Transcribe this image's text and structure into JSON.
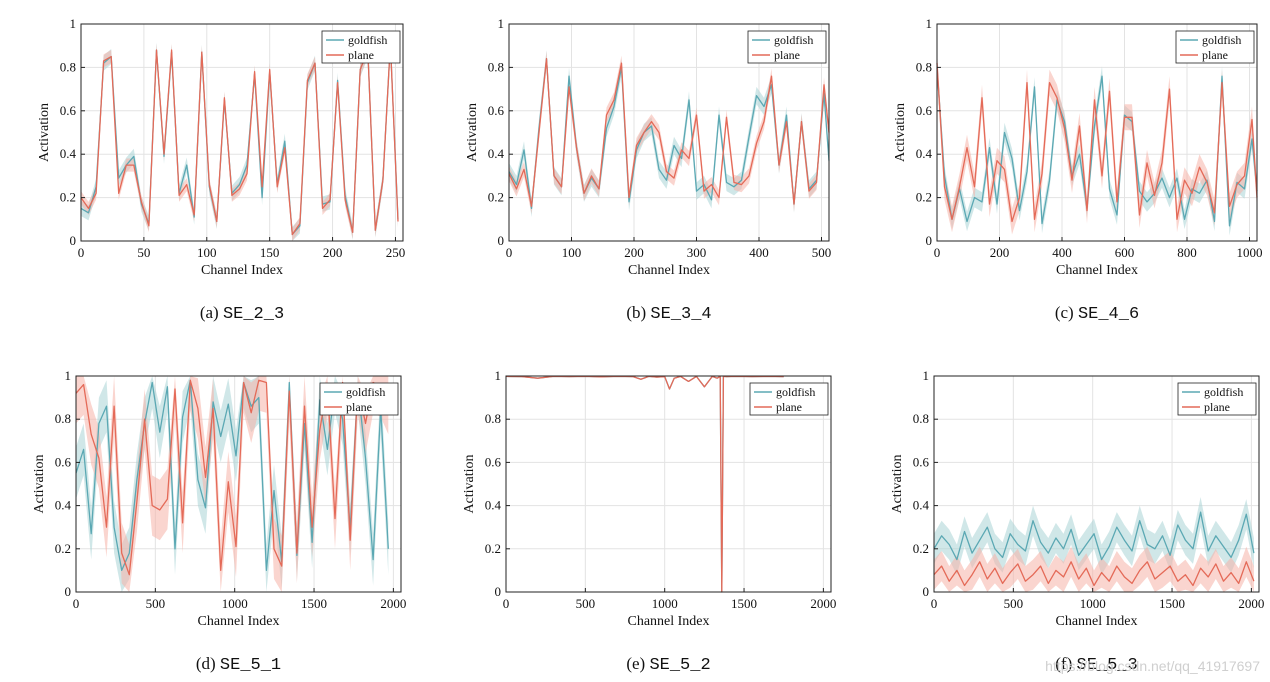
{
  "figure": {
    "series_names": [
      "goldfish",
      "plane"
    ],
    "series_colors": [
      "#5ba8b3",
      "#e46a58"
    ],
    "band_colors": [
      "#a9d4d6",
      "#f6b3a8"
    ],
    "watermark": "https://blog.csdn.net/qq_41917697"
  },
  "chart_data": [
    {
      "type": "line",
      "caption_label": "(a)",
      "caption_name": "SE_2_3",
      "xlabel": "Channel Index",
      "ylabel": "Activation",
      "xlim": [
        0,
        256
      ],
      "ylim": [
        0,
        1
      ],
      "xticks": [
        0,
        50,
        100,
        150,
        200,
        250
      ],
      "yticks": [
        0,
        0.2,
        0.4,
        0.6,
        0.8,
        1
      ],
      "legend": [
        "goldfish",
        "plane"
      ],
      "legend_position": "top-right",
      "x": [
        0,
        6,
        12,
        18,
        24,
        30,
        36,
        42,
        48,
        54,
        60,
        66,
        72,
        78,
        84,
        90,
        96,
        102,
        108,
        114,
        120,
        126,
        132,
        138,
        144,
        150,
        156,
        162,
        168,
        174,
        180,
        186,
        192,
        198,
        204,
        210,
        216,
        222,
        228,
        234,
        240,
        246,
        252
      ],
      "series": [
        {
          "name": "goldfish",
          "values": [
            0.15,
            0.13,
            0.25,
            0.82,
            0.85,
            0.29,
            0.35,
            0.39,
            0.17,
            0.08,
            0.88,
            0.39,
            0.87,
            0.22,
            0.35,
            0.11,
            0.87,
            0.25,
            0.09,
            0.65,
            0.22,
            0.26,
            0.35,
            0.77,
            0.2,
            0.78,
            0.26,
            0.46,
            0.03,
            0.07,
            0.73,
            0.82,
            0.17,
            0.18,
            0.74,
            0.21,
            0.04,
            0.79,
            0.88,
            0.05,
            0.28,
            0.91,
            0.1
          ]
        },
        {
          "name": "plane",
          "values": [
            0.2,
            0.15,
            0.22,
            0.83,
            0.85,
            0.22,
            0.35,
            0.35,
            0.18,
            0.07,
            0.88,
            0.4,
            0.88,
            0.21,
            0.26,
            0.12,
            0.87,
            0.26,
            0.09,
            0.66,
            0.21,
            0.24,
            0.31,
            0.78,
            0.25,
            0.79,
            0.25,
            0.43,
            0.03,
            0.08,
            0.74,
            0.82,
            0.15,
            0.19,
            0.73,
            0.19,
            0.04,
            0.79,
            0.88,
            0.05,
            0.28,
            0.91,
            0.09
          ]
        }
      ],
      "band_halfwidth": [
        0.035,
        0.03
      ]
    },
    {
      "type": "line",
      "caption_label": "(b)",
      "caption_name": "SE_3_4",
      "xlabel": "Channel Index",
      "ylabel": "Activation",
      "xlim": [
        0,
        512
      ],
      "ylim": [
        0,
        1
      ],
      "xticks": [
        0,
        100,
        200,
        300,
        400,
        500
      ],
      "yticks": [
        0,
        0.2,
        0.4,
        0.6,
        0.8,
        1
      ],
      "legend": [
        "goldfish",
        "plane"
      ],
      "legend_position": "top-right",
      "x": [
        0,
        12,
        24,
        36,
        48,
        60,
        72,
        84,
        96,
        108,
        120,
        132,
        144,
        156,
        168,
        180,
        192,
        204,
        216,
        228,
        240,
        252,
        264,
        276,
        288,
        300,
        312,
        324,
        336,
        348,
        360,
        372,
        384,
        396,
        408,
        420,
        432,
        444,
        456,
        468,
        480,
        492,
        504,
        512
      ],
      "series": [
        {
          "name": "goldfish",
          "values": [
            0.32,
            0.26,
            0.42,
            0.15,
            0.52,
            0.84,
            0.3,
            0.25,
            0.76,
            0.43,
            0.22,
            0.29,
            0.24,
            0.52,
            0.62,
            0.8,
            0.18,
            0.42,
            0.5,
            0.53,
            0.33,
            0.28,
            0.44,
            0.38,
            0.65,
            0.23,
            0.26,
            0.19,
            0.58,
            0.27,
            0.25,
            0.28,
            0.48,
            0.67,
            0.62,
            0.72,
            0.35,
            0.58,
            0.17,
            0.55,
            0.24,
            0.28,
            0.68,
            0.37
          ]
        },
        {
          "name": "plane",
          "values": [
            0.31,
            0.24,
            0.33,
            0.16,
            0.5,
            0.84,
            0.3,
            0.25,
            0.71,
            0.43,
            0.22,
            0.3,
            0.24,
            0.58,
            0.65,
            0.82,
            0.2,
            0.44,
            0.5,
            0.55,
            0.5,
            0.32,
            0.29,
            0.42,
            0.38,
            0.58,
            0.23,
            0.26,
            0.2,
            0.57,
            0.27,
            0.26,
            0.3,
            0.45,
            0.55,
            0.76,
            0.35,
            0.55,
            0.17,
            0.55,
            0.23,
            0.27,
            0.72,
            0.5
          ]
        }
      ],
      "band_halfwidth": [
        0.04,
        0.035
      ]
    },
    {
      "type": "line",
      "caption_label": "(c)",
      "caption_name": "SE_4_6",
      "xlabel": "Channel Index",
      "ylabel": "Activation",
      "xlim": [
        0,
        1024
      ],
      "ylim": [
        0,
        1
      ],
      "xticks": [
        0,
        200,
        400,
        600,
        800,
        1000
      ],
      "yticks": [
        0,
        0.2,
        0.4,
        0.6,
        0.8,
        1
      ],
      "legend": [
        "goldfish",
        "plane"
      ],
      "legend_position": "top-right",
      "x": [
        0,
        24,
        48,
        72,
        96,
        120,
        144,
        168,
        192,
        216,
        240,
        264,
        288,
        312,
        336,
        360,
        384,
        408,
        432,
        456,
        480,
        504,
        528,
        552,
        576,
        600,
        624,
        648,
        672,
        696,
        720,
        744,
        768,
        792,
        816,
        840,
        864,
        888,
        912,
        936,
        960,
        984,
        1008,
        1024
      ],
      "series": [
        {
          "name": "goldfish",
          "values": [
            0.8,
            0.3,
            0.1,
            0.24,
            0.09,
            0.2,
            0.18,
            0.43,
            0.17,
            0.5,
            0.38,
            0.14,
            0.32,
            0.71,
            0.08,
            0.28,
            0.65,
            0.55,
            0.3,
            0.4,
            0.15,
            0.53,
            0.76,
            0.24,
            0.12,
            0.58,
            0.55,
            0.23,
            0.18,
            0.22,
            0.29,
            0.2,
            0.29,
            0.1,
            0.24,
            0.22,
            0.28,
            0.09,
            0.76,
            0.07,
            0.27,
            0.24,
            0.47,
            0.23
          ]
        },
        {
          "name": "plane",
          "values": [
            0.82,
            0.25,
            0.1,
            0.25,
            0.43,
            0.25,
            0.66,
            0.17,
            0.37,
            0.33,
            0.09,
            0.2,
            0.73,
            0.1,
            0.31,
            0.73,
            0.66,
            0.52,
            0.28,
            0.53,
            0.14,
            0.65,
            0.3,
            0.69,
            0.18,
            0.57,
            0.57,
            0.12,
            0.36,
            0.21,
            0.36,
            0.7,
            0.1,
            0.28,
            0.22,
            0.34,
            0.27,
            0.13,
            0.73,
            0.16,
            0.26,
            0.3,
            0.56,
            0.2
          ]
        }
      ],
      "band_halfwidth": [
        0.045,
        0.06
      ]
    },
    {
      "type": "line",
      "caption_label": "(d)",
      "caption_name": "SE_5_1",
      "xlabel": "Channel Index",
      "ylabel": "Activation",
      "xlim": [
        0,
        2048
      ],
      "ylim": [
        0,
        1
      ],
      "xticks": [
        0,
        500,
        1000,
        1500,
        2000
      ],
      "yticks": [
        0,
        0.2,
        0.4,
        0.6,
        0.8,
        1
      ],
      "legend": [
        "goldfish",
        "plane"
      ],
      "legend_position": "top-right",
      "x": [
        0,
        48,
        96,
        144,
        192,
        240,
        288,
        336,
        384,
        432,
        480,
        528,
        576,
        624,
        672,
        720,
        768,
        816,
        864,
        912,
        960,
        1008,
        1056,
        1104,
        1152,
        1200,
        1248,
        1296,
        1344,
        1392,
        1440,
        1488,
        1536,
        1584,
        1632,
        1680,
        1728,
        1776,
        1824,
        1872,
        1920,
        1968
      ],
      "series": [
        {
          "name": "goldfish",
          "values": [
            0.55,
            0.66,
            0.27,
            0.78,
            0.86,
            0.3,
            0.1,
            0.18,
            0.52,
            0.78,
            0.97,
            0.74,
            0.95,
            0.2,
            0.81,
            0.98,
            0.52,
            0.39,
            0.88,
            0.72,
            0.87,
            0.63,
            0.97,
            0.86,
            0.9,
            0.1,
            0.47,
            0.14,
            0.97,
            0.17,
            0.78,
            0.23,
            0.89,
            0.66,
            0.95,
            0.8,
            0.29,
            0.96,
            0.62,
            0.15,
            0.85,
            0.2
          ]
        },
        {
          "name": "plane",
          "values": [
            0.92,
            0.96,
            0.73,
            0.62,
            0.3,
            0.86,
            0.18,
            0.08,
            0.42,
            0.8,
            0.4,
            0.38,
            0.43,
            0.94,
            0.32,
            0.98,
            0.85,
            0.53,
            0.85,
            0.1,
            0.51,
            0.21,
            0.97,
            0.83,
            0.98,
            0.97,
            0.2,
            0.12,
            0.93,
            0.18,
            0.86,
            0.3,
            0.75,
            0.96,
            0.34,
            0.97,
            0.24,
            0.96,
            0.78,
            0.97,
            0.95,
            0.87
          ]
        }
      ],
      "band_halfwidth": [
        0.12,
        0.14
      ]
    },
    {
      "type": "line",
      "caption_label": "(e)",
      "caption_name": "SE_5_2",
      "xlabel": "Channel Index",
      "ylabel": "Activation",
      "xlim": [
        0,
        2048
      ],
      "ylim": [
        0,
        1
      ],
      "xticks": [
        0,
        500,
        1000,
        1500,
        2000
      ],
      "yticks": [
        0,
        0.2,
        0.4,
        0.6,
        0.8,
        1
      ],
      "legend": [
        "goldfish",
        "plane"
      ],
      "legend_position": "top-right",
      "x": [
        0,
        100,
        200,
        300,
        400,
        500,
        600,
        700,
        800,
        850,
        900,
        950,
        1000,
        1030,
        1060,
        1100,
        1150,
        1200,
        1250,
        1300,
        1330,
        1350,
        1360,
        1370,
        1390,
        1450,
        1550,
        1650,
        1750
      ],
      "series": [
        {
          "name": "goldfish",
          "values": [
            0.998,
            0.997,
            0.99,
            0.998,
            0.997,
            0.998,
            0.996,
            0.998,
            0.997,
            0.985,
            0.998,
            0.995,
            0.997,
            0.94,
            0.99,
            0.998,
            0.975,
            0.998,
            0.95,
            0.998,
            0.99,
            0.998,
            0.0,
            0.998,
            0.997,
            0.998,
            0.997,
            0.998,
            0.997
          ]
        },
        {
          "name": "plane",
          "values": [
            0.998,
            0.997,
            0.99,
            0.998,
            0.997,
            0.998,
            0.996,
            0.998,
            0.997,
            0.985,
            0.998,
            0.995,
            0.997,
            0.94,
            0.99,
            0.998,
            0.975,
            0.998,
            0.95,
            0.998,
            0.99,
            0.998,
            0.0,
            0.998,
            0.997,
            0.998,
            0.997,
            0.998,
            0.997
          ]
        }
      ],
      "band_halfwidth": [
        0.0,
        0.0
      ]
    },
    {
      "type": "line",
      "caption_label": "(f)",
      "caption_name": "SE_5_3",
      "xlabel": "Channel Index",
      "ylabel": "Activation",
      "xlim": [
        0,
        2048
      ],
      "ylim": [
        0,
        1
      ],
      "xticks": [
        0,
        500,
        1000,
        1500,
        2000
      ],
      "yticks": [
        0,
        0.2,
        0.4,
        0.6,
        0.8,
        1
      ],
      "legend": [
        "goldfish",
        "plane"
      ],
      "legend_position": "top-right",
      "x": [
        0,
        48,
        96,
        144,
        192,
        240,
        288,
        336,
        384,
        432,
        480,
        528,
        576,
        624,
        672,
        720,
        768,
        816,
        864,
        912,
        960,
        1008,
        1056,
        1104,
        1152,
        1200,
        1248,
        1296,
        1344,
        1392,
        1440,
        1488,
        1536,
        1584,
        1632,
        1680,
        1728,
        1776,
        1824,
        1872,
        1920,
        1968,
        2016
      ],
      "series": [
        {
          "name": "goldfish",
          "values": [
            0.2,
            0.26,
            0.22,
            0.15,
            0.28,
            0.18,
            0.24,
            0.3,
            0.2,
            0.16,
            0.27,
            0.22,
            0.19,
            0.33,
            0.23,
            0.18,
            0.25,
            0.2,
            0.29,
            0.17,
            0.22,
            0.27,
            0.15,
            0.21,
            0.3,
            0.24,
            0.19,
            0.33,
            0.22,
            0.2,
            0.26,
            0.17,
            0.31,
            0.24,
            0.2,
            0.37,
            0.19,
            0.26,
            0.21,
            0.16,
            0.24,
            0.36,
            0.18
          ]
        },
        {
          "name": "plane",
          "values": [
            0.08,
            0.12,
            0.05,
            0.1,
            0.03,
            0.08,
            0.14,
            0.06,
            0.11,
            0.04,
            0.09,
            0.13,
            0.05,
            0.08,
            0.12,
            0.04,
            0.1,
            0.07,
            0.14,
            0.06,
            0.11,
            0.03,
            0.09,
            0.05,
            0.12,
            0.07,
            0.04,
            0.1,
            0.14,
            0.06,
            0.09,
            0.12,
            0.05,
            0.08,
            0.03,
            0.11,
            0.07,
            0.13,
            0.05,
            0.09,
            0.04,
            0.14,
            0.05
          ]
        }
      ],
      "band_halfwidth": [
        0.07,
        0.07
      ]
    }
  ]
}
